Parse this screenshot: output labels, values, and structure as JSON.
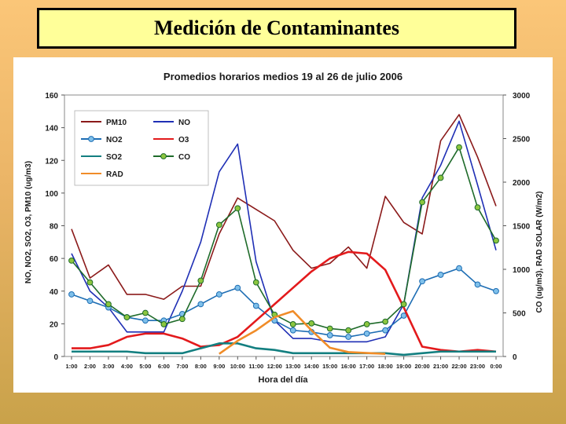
{
  "slide": {
    "title": "Medición de Contaminantes"
  },
  "chart_data": {
    "type": "line",
    "title": "Promedios horarios medios 19 al 26 de julio 2006",
    "xlabel": "Hora del día",
    "ylabel_left": "NO, NO2, SO2, O3, PM10 (ug/m3)",
    "ylabel_right": "CO (ug/m3), RAD SOLAR  (W/m2)",
    "ylim_left": [
      0,
      160
    ],
    "ylim_right": [
      0,
      3000
    ],
    "yticks_left": [
      "0",
      "20",
      "40",
      "60",
      "80",
      "100",
      "120",
      "140",
      "160"
    ],
    "yticks_right": [
      "0",
      "500",
      "1000",
      "1500",
      "2000",
      "2500",
      "3000"
    ],
    "categories": [
      "1:00",
      "2:00",
      "3:00",
      "4:00",
      "5:00",
      "6:00",
      "7:00",
      "8:00",
      "9:00",
      "10:00",
      "11:00",
      "12:00",
      "13:00",
      "14:00",
      "15:00",
      "16:00",
      "17:00",
      "18:00",
      "19:00",
      "20:00",
      "21:00",
      "22:00",
      "23:00",
      "0:00"
    ],
    "legend_position": "top-left",
    "grid": false,
    "series": [
      {
        "name": "PM10",
        "axis": "left",
        "color": "#8b1a1a",
        "marker": false,
        "values": [
          78,
          48,
          56,
          38,
          38,
          35,
          43,
          43,
          75,
          97,
          90,
          83,
          65,
          54,
          57,
          67,
          54,
          98,
          82,
          75,
          132,
          148,
          122,
          92
        ]
      },
      {
        "name": "NO",
        "axis": "left",
        "color": "#1f2fb5",
        "marker": false,
        "values": [
          63,
          40,
          30,
          15,
          15,
          15,
          40,
          70,
          113,
          130,
          58,
          22,
          11,
          11,
          9,
          9,
          9,
          12,
          32,
          97,
          117,
          144,
          105,
          65
        ]
      },
      {
        "name": "NO2",
        "axis": "left",
        "color": "#1e6eb4",
        "marker": true,
        "marker_fill": "#7fc0ea",
        "values": [
          38,
          34,
          30,
          24,
          22,
          22,
          26,
          32,
          38,
          42,
          31,
          22,
          16,
          15,
          13,
          12,
          14,
          16,
          25,
          46,
          50,
          54,
          44,
          40
        ]
      },
      {
        "name": "O3",
        "axis": "left",
        "color": "#e31a1c",
        "marker": false,
        "values": [
          5,
          5,
          7,
          12,
          14,
          14,
          11,
          6,
          7,
          12,
          22,
          32,
          42,
          52,
          60,
          64,
          63,
          53,
          30,
          6,
          4,
          3,
          4,
          3
        ]
      },
      {
        "name": "SO2",
        "axis": "left",
        "color": "#137f80",
        "marker": false,
        "values": [
          3,
          3,
          3,
          3,
          2,
          2,
          2,
          5,
          8,
          8,
          5,
          4,
          2,
          2,
          2,
          2,
          2,
          2,
          1,
          2,
          3,
          3,
          3,
          3
        ]
      },
      {
        "name": "CO",
        "axis": "right",
        "color": "#1f6b2a",
        "marker": true,
        "marker_fill": "#8cc63f",
        "values": [
          1100,
          850,
          600,
          450,
          500,
          370,
          430,
          870,
          1510,
          1700,
          850,
          480,
          370,
          380,
          320,
          300,
          370,
          400,
          600,
          1770,
          2050,
          2400,
          1710,
          1330
        ]
      },
      {
        "name": "RAD",
        "axis": "right",
        "color": "#f08c28",
        "marker": false,
        "x": [
          "9:00",
          "10:00",
          "11:00",
          "12:00",
          "13:00",
          "14:00",
          "15:00",
          "16:00",
          "17:00",
          "18:00"
        ],
        "values": [
          30,
          180,
          300,
          450,
          520,
          300,
          100,
          50,
          40,
          30
        ]
      }
    ]
  }
}
